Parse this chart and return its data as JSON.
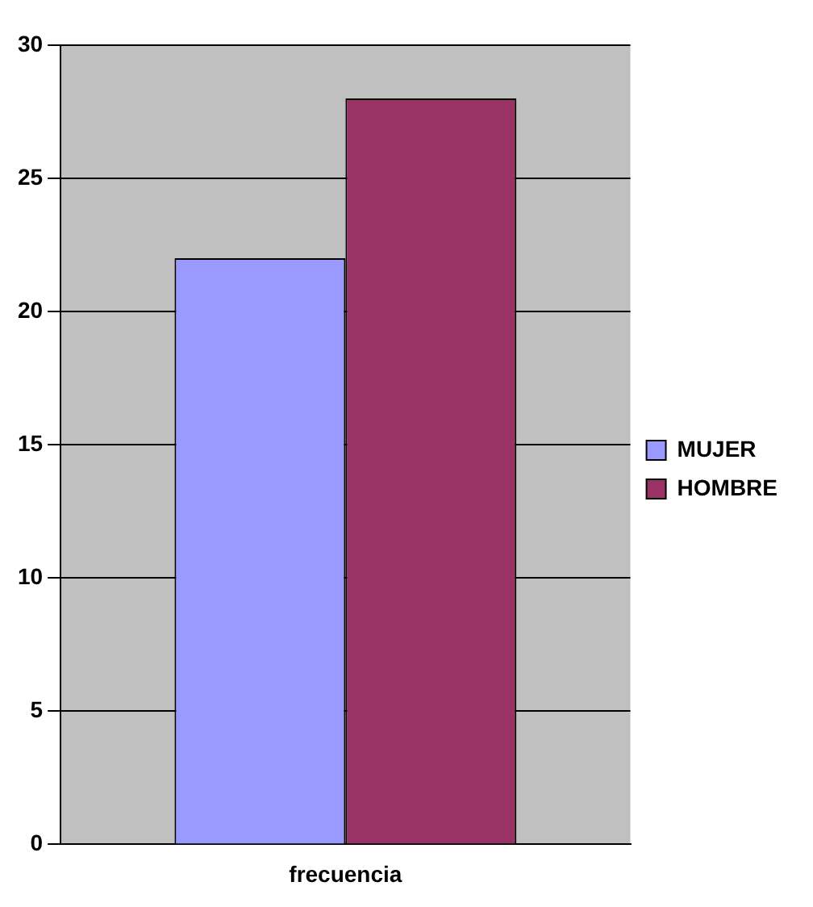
{
  "chart_data": {
    "type": "bar",
    "categories": [
      "frecuencia"
    ],
    "series": [
      {
        "name": "MUJER",
        "color": "#9999ff",
        "values": [
          22
        ]
      },
      {
        "name": "HOMBRE",
        "color": "#993366",
        "values": [
          28
        ]
      }
    ],
    "ylim": [
      0,
      30
    ],
    "yticks": [
      0,
      5,
      10,
      15,
      20,
      25,
      30
    ],
    "grid": "y",
    "legend": "right"
  }
}
